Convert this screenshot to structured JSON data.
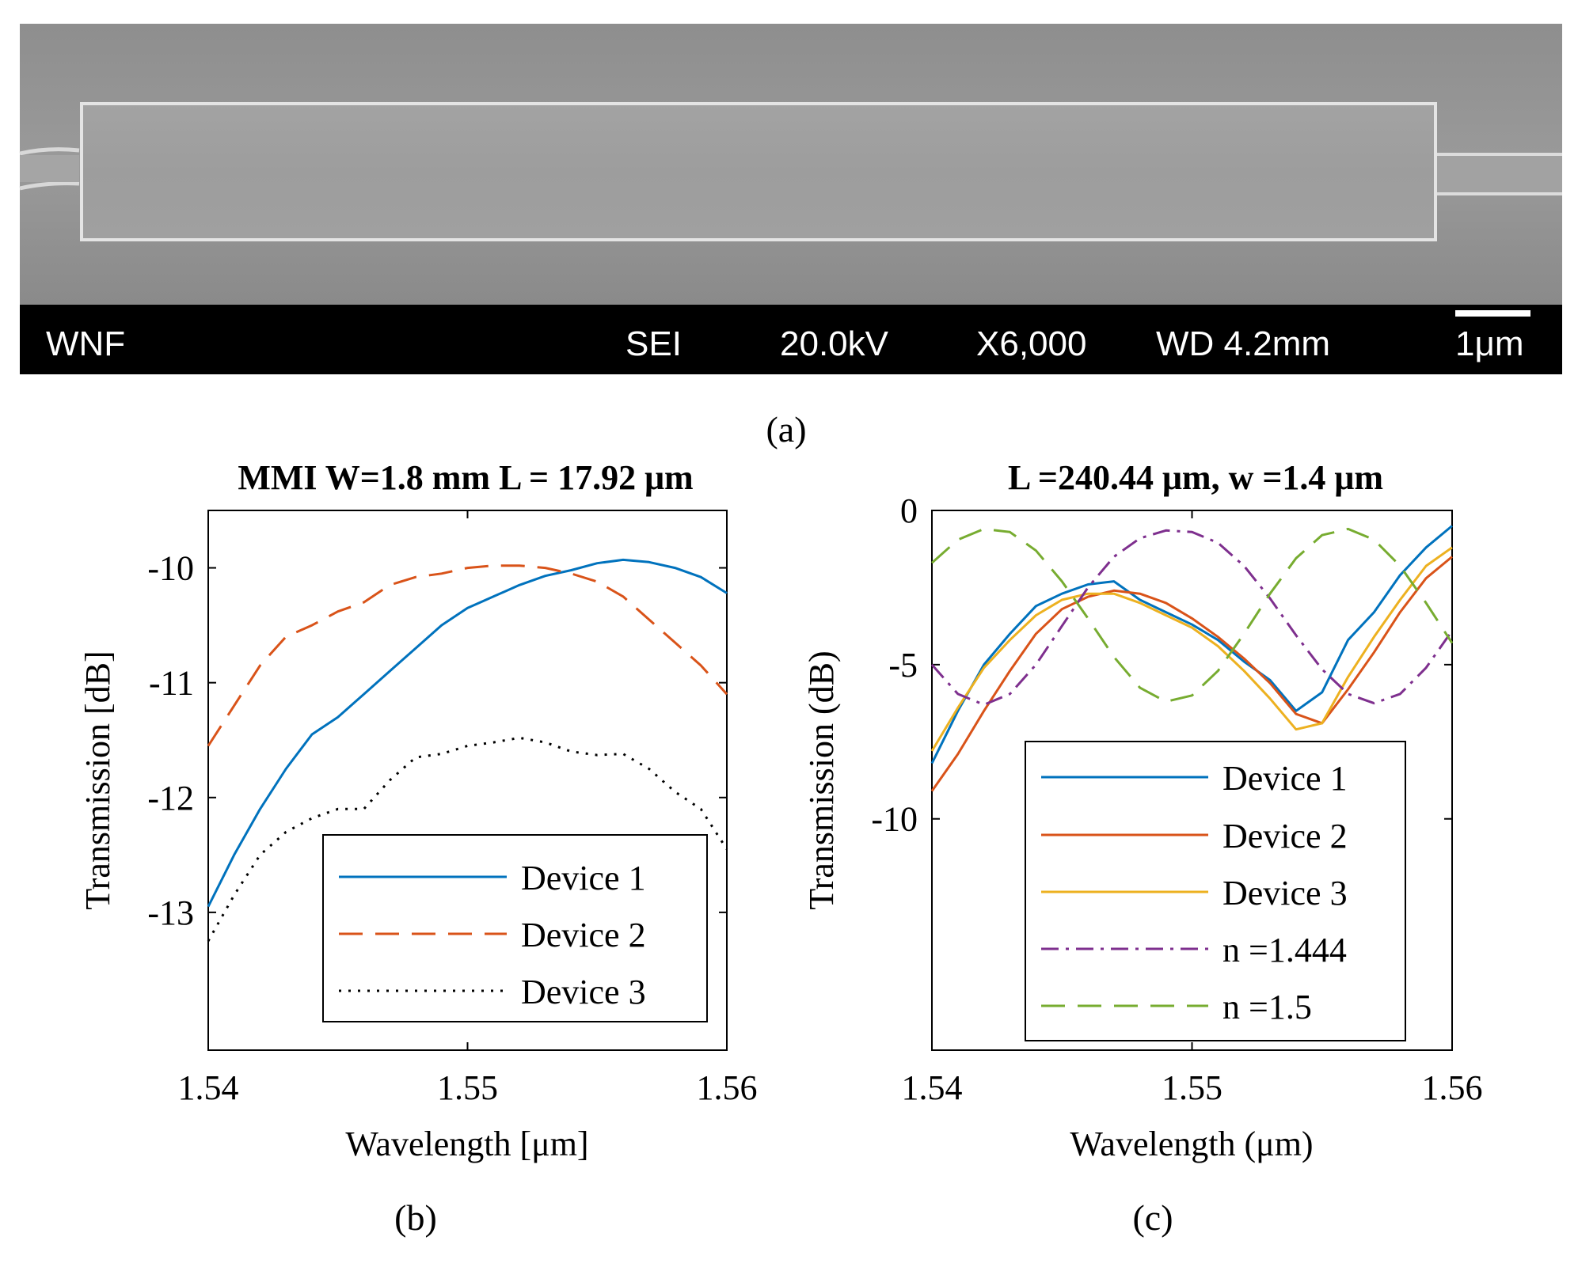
{
  "panel_labels": [
    "(a)",
    "(b)",
    "(c)"
  ],
  "sem": {
    "info_items": [
      "WNF",
      "SEI",
      "20.0kV",
      "X6,000",
      "WD 4.2mm",
      "1μm"
    ]
  },
  "chart_data": [
    {
      "type": "line",
      "title": "MMI W=1.8 mm L = 17.92 μm",
      "xlabel": "Wavelength [μm]",
      "ylabel": "Transmission [dB]",
      "xlim": [
        1.54,
        1.56
      ],
      "ylim": [
        -14.2,
        -9.5
      ],
      "xticks": [
        1.54,
        1.55,
        1.56
      ],
      "yticks": [
        -13,
        -12,
        -11,
        -10
      ],
      "xtick_labels": [
        "1.54",
        "1.55",
        "1.56"
      ],
      "ytick_labels": [
        "-13",
        "-12",
        "-11",
        "-10"
      ],
      "legend": "bottom-right",
      "series": [
        {
          "name": "Device 1",
          "color": "#0072BD",
          "style": "solid",
          "x": [
            1.54,
            1.541,
            1.542,
            1.543,
            1.544,
            1.545,
            1.546,
            1.547,
            1.548,
            1.549,
            1.55,
            1.551,
            1.552,
            1.553,
            1.554,
            1.555,
            1.556,
            1.557,
            1.558,
            1.559,
            1.56
          ],
          "y": [
            -12.95,
            -12.5,
            -12.1,
            -11.75,
            -11.45,
            -11.3,
            -11.1,
            -10.9,
            -10.7,
            -10.5,
            -10.35,
            -10.25,
            -10.15,
            -10.07,
            -10.02,
            -9.96,
            -9.93,
            -9.95,
            -10.0,
            -10.08,
            -10.22
          ]
        },
        {
          "name": "Device 2",
          "color": "#D95319",
          "style": "dashed",
          "x": [
            1.54,
            1.541,
            1.542,
            1.543,
            1.544,
            1.545,
            1.546,
            1.547,
            1.548,
            1.549,
            1.55,
            1.551,
            1.552,
            1.553,
            1.554,
            1.555,
            1.556,
            1.557,
            1.558,
            1.559,
            1.56
          ],
          "y": [
            -11.55,
            -11.2,
            -10.85,
            -10.6,
            -10.5,
            -10.38,
            -10.3,
            -10.15,
            -10.08,
            -10.05,
            -10.0,
            -9.98,
            -9.98,
            -10.0,
            -10.05,
            -10.12,
            -10.25,
            -10.45,
            -10.65,
            -10.85,
            -11.1
          ]
        },
        {
          "name": "Device 3",
          "color": "#000000",
          "style": "dotted",
          "x": [
            1.54,
            1.541,
            1.542,
            1.543,
            1.544,
            1.545,
            1.546,
            1.547,
            1.548,
            1.549,
            1.55,
            1.551,
            1.552,
            1.553,
            1.554,
            1.555,
            1.556,
            1.557,
            1.558,
            1.559,
            1.56
          ],
          "y": [
            -13.25,
            -12.85,
            -12.5,
            -12.3,
            -12.18,
            -12.1,
            -12.1,
            -11.85,
            -11.65,
            -11.62,
            -11.55,
            -11.52,
            -11.48,
            -11.52,
            -11.6,
            -11.63,
            -11.62,
            -11.75,
            -11.95,
            -12.1,
            -12.45
          ]
        }
      ]
    },
    {
      "type": "line",
      "title": "L =240.44 μm, w =1.4 μm",
      "xlabel": "Wavelength (μm)",
      "ylabel": "Transmission (dB)",
      "xlim": [
        1.54,
        1.56
      ],
      "ylim": [
        -17.5,
        0
      ],
      "xticks": [
        1.54,
        1.55,
        1.56
      ],
      "yticks": [
        -10,
        -5,
        0
      ],
      "xtick_labels": [
        "1.54",
        "1.55",
        "1.56"
      ],
      "ytick_labels": [
        "-10",
        "-5",
        "0"
      ],
      "legend": "bottom-right",
      "series": [
        {
          "name": "Device 1",
          "color": "#0072BD",
          "style": "solid",
          "x": [
            1.54,
            1.541,
            1.542,
            1.543,
            1.544,
            1.545,
            1.546,
            1.547,
            1.548,
            1.549,
            1.55,
            1.551,
            1.552,
            1.553,
            1.554,
            1.555,
            1.556,
            1.557,
            1.558,
            1.559,
            1.56
          ],
          "y": [
            -8.2,
            -6.5,
            -5.0,
            -4.0,
            -3.1,
            -2.7,
            -2.4,
            -2.3,
            -2.9,
            -3.3,
            -3.7,
            -4.2,
            -4.9,
            -5.5,
            -6.5,
            -5.9,
            -4.2,
            -3.3,
            -2.1,
            -1.2,
            -0.5
          ]
        },
        {
          "name": "Device 2",
          "color": "#D95319",
          "style": "solid",
          "x": [
            1.54,
            1.541,
            1.542,
            1.543,
            1.544,
            1.545,
            1.546,
            1.547,
            1.548,
            1.549,
            1.55,
            1.551,
            1.552,
            1.553,
            1.554,
            1.555,
            1.556,
            1.557,
            1.558,
            1.559,
            1.56
          ],
          "y": [
            -9.1,
            -7.9,
            -6.5,
            -5.2,
            -4.0,
            -3.2,
            -2.8,
            -2.6,
            -2.7,
            -3.0,
            -3.5,
            -4.1,
            -4.8,
            -5.6,
            -6.6,
            -6.9,
            -5.8,
            -4.6,
            -3.3,
            -2.2,
            -1.5
          ]
        },
        {
          "name": "Device 3",
          "color": "#EDB120",
          "style": "solid",
          "x": [
            1.54,
            1.541,
            1.542,
            1.543,
            1.544,
            1.545,
            1.546,
            1.547,
            1.548,
            1.549,
            1.55,
            1.551,
            1.552,
            1.553,
            1.554,
            1.555,
            1.556,
            1.557,
            1.558,
            1.559,
            1.56
          ],
          "y": [
            -7.8,
            -6.4,
            -5.1,
            -4.2,
            -3.4,
            -2.9,
            -2.7,
            -2.7,
            -3.0,
            -3.4,
            -3.8,
            -4.4,
            -5.2,
            -6.1,
            -7.1,
            -6.9,
            -5.4,
            -4.1,
            -2.9,
            -1.8,
            -1.2
          ]
        },
        {
          "name": "n =1.444",
          "color": "#7E2F8E",
          "style": "dashdot",
          "x": [
            1.54,
            1.541,
            1.542,
            1.543,
            1.544,
            1.545,
            1.546,
            1.547,
            1.548,
            1.549,
            1.55,
            1.551,
            1.552,
            1.553,
            1.554,
            1.555,
            1.556,
            1.557,
            1.558,
            1.559,
            1.56
          ],
          "y": [
            -5.0,
            -5.95,
            -6.3,
            -5.95,
            -5.0,
            -3.75,
            -2.5,
            -1.5,
            -0.9,
            -0.65,
            -0.7,
            -1.05,
            -1.8,
            -2.85,
            -4.05,
            -5.15,
            -5.95,
            -6.25,
            -5.95,
            -5.1,
            -3.9
          ]
        },
        {
          "name": "n =1.5",
          "color": "#77AC30",
          "style": "dashed",
          "x": [
            1.54,
            1.541,
            1.542,
            1.543,
            1.544,
            1.545,
            1.546,
            1.547,
            1.548,
            1.549,
            1.55,
            1.551,
            1.552,
            1.553,
            1.554,
            1.555,
            1.556,
            1.557,
            1.558,
            1.559,
            1.56
          ],
          "y": [
            -1.7,
            -0.95,
            -0.6,
            -0.7,
            -1.3,
            -2.3,
            -3.5,
            -4.75,
            -5.75,
            -6.2,
            -6.0,
            -5.2,
            -4.0,
            -2.7,
            -1.55,
            -0.8,
            -0.6,
            -0.95,
            -1.8,
            -3.0,
            -4.3
          ]
        }
      ]
    }
  ]
}
